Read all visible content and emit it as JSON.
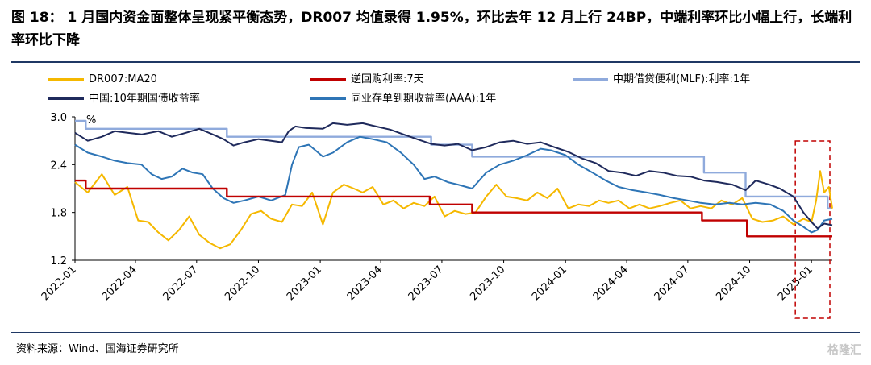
{
  "title": "图 18： 1 月国内资金面整体呈现紧平衡态势，DR007 均值录得 1.95%，环比去年 12 月上行 24BP，中端利率环比小幅上行，长端利率环比下降",
  "source": "资料来源：Wind、国海证券研究所",
  "watermark": "格隆汇",
  "chart_data": {
    "type": "line",
    "ylabel": "%",
    "ylim": [
      1.2,
      3.0
    ],
    "yticks": [
      "1.2",
      "1.8",
      "2.4",
      "3.0"
    ],
    "xticks": [
      "2022-01",
      "2022-04",
      "2022-07",
      "2022-10",
      "2023-01",
      "2023-04",
      "2023-07",
      "2023-10",
      "2024-01",
      "2024-04",
      "2024-07",
      "2024-10",
      "2025-01"
    ],
    "grid": false,
    "legend_position": "top",
    "highlight_box": {
      "x_range": [
        "2024-12-08",
        "2025-02-01"
      ],
      "color": "#c00000",
      "style": "dashed"
    },
    "series": [
      {
        "name": "DR007:MA20",
        "color": "#f5b800",
        "points": [
          [
            "2022-01-01",
            2.18
          ],
          [
            "2022-01-20",
            2.05
          ],
          [
            "2022-02-10",
            2.28
          ],
          [
            "2022-03-01",
            2.02
          ],
          [
            "2022-03-20",
            2.12
          ],
          [
            "2022-04-05",
            1.7
          ],
          [
            "2022-04-20",
            1.68
          ],
          [
            "2022-05-05",
            1.55
          ],
          [
            "2022-05-20",
            1.45
          ],
          [
            "2022-06-05",
            1.58
          ],
          [
            "2022-06-20",
            1.75
          ],
          [
            "2022-07-05",
            1.52
          ],
          [
            "2022-07-20",
            1.42
          ],
          [
            "2022-08-05",
            1.35
          ],
          [
            "2022-08-20",
            1.4
          ],
          [
            "2022-09-05",
            1.58
          ],
          [
            "2022-09-20",
            1.78
          ],
          [
            "2022-10-05",
            1.82
          ],
          [
            "2022-10-20",
            1.72
          ],
          [
            "2022-11-05",
            1.68
          ],
          [
            "2022-11-20",
            1.9
          ],
          [
            "2022-12-05",
            1.88
          ],
          [
            "2022-12-20",
            2.05
          ],
          [
            "2023-01-05",
            1.65
          ],
          [
            "2023-01-20",
            2.05
          ],
          [
            "2023-02-05",
            2.15
          ],
          [
            "2023-02-20",
            2.1
          ],
          [
            "2023-03-05",
            2.05
          ],
          [
            "2023-03-20",
            2.12
          ],
          [
            "2023-04-05",
            1.9
          ],
          [
            "2023-04-20",
            1.95
          ],
          [
            "2023-05-05",
            1.85
          ],
          [
            "2023-05-20",
            1.92
          ],
          [
            "2023-06-05",
            1.88
          ],
          [
            "2023-06-20",
            2.0
          ],
          [
            "2023-07-05",
            1.75
          ],
          [
            "2023-07-20",
            1.82
          ],
          [
            "2023-08-05",
            1.78
          ],
          [
            "2023-08-20",
            1.8
          ],
          [
            "2023-09-05",
            2.0
          ],
          [
            "2023-09-20",
            2.15
          ],
          [
            "2023-10-05",
            2.0
          ],
          [
            "2023-10-20",
            1.98
          ],
          [
            "2023-11-05",
            1.95
          ],
          [
            "2023-11-20",
            2.05
          ],
          [
            "2023-12-05",
            1.98
          ],
          [
            "2023-12-20",
            2.1
          ],
          [
            "2024-01-05",
            1.85
          ],
          [
            "2024-01-20",
            1.9
          ],
          [
            "2024-02-05",
            1.88
          ],
          [
            "2024-02-20",
            1.95
          ],
          [
            "2024-03-05",
            1.92
          ],
          [
            "2024-03-20",
            1.95
          ],
          [
            "2024-04-05",
            1.85
          ],
          [
            "2024-04-20",
            1.9
          ],
          [
            "2024-05-05",
            1.85
          ],
          [
            "2024-05-20",
            1.88
          ],
          [
            "2024-06-05",
            1.92
          ],
          [
            "2024-06-20",
            1.95
          ],
          [
            "2024-07-05",
            1.85
          ],
          [
            "2024-07-20",
            1.88
          ],
          [
            "2024-08-05",
            1.85
          ],
          [
            "2024-08-20",
            1.95
          ],
          [
            "2024-09-05",
            1.9
          ],
          [
            "2024-09-20",
            1.98
          ],
          [
            "2024-10-05",
            1.72
          ],
          [
            "2024-10-20",
            1.68
          ],
          [
            "2024-11-05",
            1.7
          ],
          [
            "2024-11-20",
            1.75
          ],
          [
            "2024-12-05",
            1.65
          ],
          [
            "2024-12-20",
            1.72
          ],
          [
            "2025-01-01",
            1.68
          ],
          [
            "2025-01-08",
            1.95
          ],
          [
            "2025-01-14",
            2.32
          ],
          [
            "2025-01-20",
            2.05
          ],
          [
            "2025-01-27",
            2.12
          ],
          [
            "2025-02-01",
            1.85
          ]
        ]
      },
      {
        "name": "逆回购利率:7天",
        "color": "#c00000",
        "points": [
          [
            "2022-01-01",
            2.2
          ],
          [
            "2022-01-17",
            2.2
          ],
          [
            "2022-01-17",
            2.1
          ],
          [
            "2022-08-15",
            2.1
          ],
          [
            "2022-08-15",
            2.0
          ],
          [
            "2023-06-13",
            2.0
          ],
          [
            "2023-06-13",
            1.9
          ],
          [
            "2023-08-15",
            1.9
          ],
          [
            "2023-08-15",
            1.8
          ],
          [
            "2024-07-22",
            1.8
          ],
          [
            "2024-07-22",
            1.7
          ],
          [
            "2024-09-27",
            1.7
          ],
          [
            "2024-09-27",
            1.5
          ],
          [
            "2025-02-01",
            1.5
          ]
        ]
      },
      {
        "name": "中期借贷便利(MLF):利率:1年",
        "color": "#8faadc",
        "points": [
          [
            "2022-01-01",
            2.95
          ],
          [
            "2022-01-17",
            2.95
          ],
          [
            "2022-01-17",
            2.85
          ],
          [
            "2022-08-15",
            2.85
          ],
          [
            "2022-08-15",
            2.75
          ],
          [
            "2023-06-15",
            2.75
          ],
          [
            "2023-06-15",
            2.65
          ],
          [
            "2023-08-15",
            2.65
          ],
          [
            "2023-08-15",
            2.5
          ],
          [
            "2024-07-25",
            2.5
          ],
          [
            "2024-07-25",
            2.3
          ],
          [
            "2024-09-25",
            2.3
          ],
          [
            "2024-09-25",
            2.0
          ],
          [
            "2025-01-25",
            2.0
          ],
          [
            "2025-01-25",
            1.85
          ],
          [
            "2025-02-01",
            1.85
          ]
        ]
      },
      {
        "name": "中国:10年期国债收益率",
        "color": "#1f2a5c",
        "points": [
          [
            "2022-01-01",
            2.8
          ],
          [
            "2022-01-20",
            2.7
          ],
          [
            "2022-02-10",
            2.75
          ],
          [
            "2022-03-01",
            2.82
          ],
          [
            "2022-03-20",
            2.8
          ],
          [
            "2022-04-10",
            2.78
          ],
          [
            "2022-05-05",
            2.82
          ],
          [
            "2022-05-25",
            2.75
          ],
          [
            "2022-06-15",
            2.8
          ],
          [
            "2022-07-05",
            2.85
          ],
          [
            "2022-07-25",
            2.78
          ],
          [
            "2022-08-10",
            2.72
          ],
          [
            "2022-08-25",
            2.64
          ],
          [
            "2022-09-10",
            2.68
          ],
          [
            "2022-10-01",
            2.72
          ],
          [
            "2022-10-20",
            2.7
          ],
          [
            "2022-11-05",
            2.68
          ],
          [
            "2022-11-15",
            2.82
          ],
          [
            "2022-11-25",
            2.88
          ],
          [
            "2022-12-10",
            2.86
          ],
          [
            "2023-01-05",
            2.85
          ],
          [
            "2023-01-20",
            2.92
          ],
          [
            "2023-02-10",
            2.9
          ],
          [
            "2023-03-05",
            2.92
          ],
          [
            "2023-03-25",
            2.88
          ],
          [
            "2023-04-15",
            2.84
          ],
          [
            "2023-05-05",
            2.78
          ],
          [
            "2023-05-25",
            2.72
          ],
          [
            "2023-06-15",
            2.66
          ],
          [
            "2023-07-05",
            2.64
          ],
          [
            "2023-07-25",
            2.66
          ],
          [
            "2023-08-15",
            2.58
          ],
          [
            "2023-09-05",
            2.62
          ],
          [
            "2023-09-25",
            2.68
          ],
          [
            "2023-10-15",
            2.7
          ],
          [
            "2023-11-05",
            2.66
          ],
          [
            "2023-11-25",
            2.68
          ],
          [
            "2023-12-15",
            2.62
          ],
          [
            "2024-01-05",
            2.56
          ],
          [
            "2024-01-25",
            2.48
          ],
          [
            "2024-02-15",
            2.42
          ],
          [
            "2024-03-05",
            2.32
          ],
          [
            "2024-03-25",
            2.3
          ],
          [
            "2024-04-15",
            2.26
          ],
          [
            "2024-05-05",
            2.32
          ],
          [
            "2024-05-25",
            2.3
          ],
          [
            "2024-06-15",
            2.26
          ],
          [
            "2024-07-05",
            2.25
          ],
          [
            "2024-07-25",
            2.2
          ],
          [
            "2024-08-15",
            2.18
          ],
          [
            "2024-09-05",
            2.15
          ],
          [
            "2024-09-25",
            2.08
          ],
          [
            "2024-10-10",
            2.2
          ],
          [
            "2024-10-30",
            2.15
          ],
          [
            "2024-11-15",
            2.1
          ],
          [
            "2024-12-05",
            2.0
          ],
          [
            "2024-12-20",
            1.8
          ],
          [
            "2025-01-01",
            1.68
          ],
          [
            "2025-01-10",
            1.6
          ],
          [
            "2025-01-20",
            1.66
          ],
          [
            "2025-02-01",
            1.64
          ]
        ]
      },
      {
        "name": "同业存单到期收益率(AAA):1年",
        "color": "#2e75b6",
        "points": [
          [
            "2022-01-01",
            2.65
          ],
          [
            "2022-01-20",
            2.55
          ],
          [
            "2022-02-10",
            2.5
          ],
          [
            "2022-03-01",
            2.45
          ],
          [
            "2022-03-20",
            2.42
          ],
          [
            "2022-04-10",
            2.4
          ],
          [
            "2022-04-25",
            2.28
          ],
          [
            "2022-05-10",
            2.22
          ],
          [
            "2022-05-25",
            2.25
          ],
          [
            "2022-06-10",
            2.35
          ],
          [
            "2022-06-25",
            2.3
          ],
          [
            "2022-07-10",
            2.28
          ],
          [
            "2022-07-25",
            2.1
          ],
          [
            "2022-08-10",
            1.98
          ],
          [
            "2022-08-25",
            1.92
          ],
          [
            "2022-09-10",
            1.95
          ],
          [
            "2022-10-01",
            2.0
          ],
          [
            "2022-10-20",
            1.95
          ],
          [
            "2022-11-10",
            2.02
          ],
          [
            "2022-11-20",
            2.4
          ],
          [
            "2022-11-30",
            2.62
          ],
          [
            "2022-12-15",
            2.65
          ],
          [
            "2023-01-05",
            2.5
          ],
          [
            "2023-01-20",
            2.55
          ],
          [
            "2023-02-10",
            2.68
          ],
          [
            "2023-03-01",
            2.75
          ],
          [
            "2023-03-20",
            2.72
          ],
          [
            "2023-04-10",
            2.68
          ],
          [
            "2023-05-01",
            2.55
          ],
          [
            "2023-05-20",
            2.4
          ],
          [
            "2023-06-05",
            2.22
          ],
          [
            "2023-06-20",
            2.25
          ],
          [
            "2023-07-10",
            2.18
          ],
          [
            "2023-07-25",
            2.15
          ],
          [
            "2023-08-15",
            2.1
          ],
          [
            "2023-09-05",
            2.3
          ],
          [
            "2023-09-25",
            2.4
          ],
          [
            "2023-10-15",
            2.45
          ],
          [
            "2023-11-05",
            2.52
          ],
          [
            "2023-11-25",
            2.6
          ],
          [
            "2023-12-10",
            2.58
          ],
          [
            "2024-01-01",
            2.52
          ],
          [
            "2024-01-20",
            2.4
          ],
          [
            "2024-02-10",
            2.3
          ],
          [
            "2024-03-01",
            2.2
          ],
          [
            "2024-03-20",
            2.12
          ],
          [
            "2024-04-10",
            2.08
          ],
          [
            "2024-05-01",
            2.05
          ],
          [
            "2024-05-20",
            2.02
          ],
          [
            "2024-06-10",
            1.98
          ],
          [
            "2024-07-01",
            1.95
          ],
          [
            "2024-07-20",
            1.92
          ],
          [
            "2024-08-10",
            1.9
          ],
          [
            "2024-09-01",
            1.92
          ],
          [
            "2024-09-20",
            1.9
          ],
          [
            "2024-10-10",
            1.92
          ],
          [
            "2024-11-01",
            1.9
          ],
          [
            "2024-11-20",
            1.82
          ],
          [
            "2024-12-05",
            1.7
          ],
          [
            "2024-12-20",
            1.62
          ],
          [
            "2025-01-01",
            1.55
          ],
          [
            "2025-01-10",
            1.58
          ],
          [
            "2025-01-20",
            1.7
          ],
          [
            "2025-02-01",
            1.72
          ]
        ]
      }
    ]
  }
}
